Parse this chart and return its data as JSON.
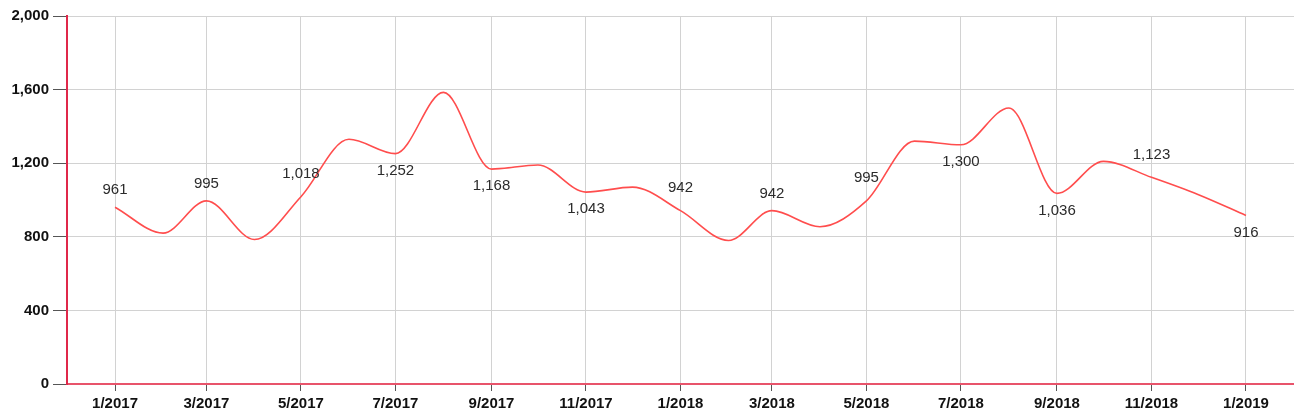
{
  "chart_data": {
    "type": "line",
    "x": [
      "2017-01",
      "2017-02",
      "2017-03",
      "2017-04",
      "2017-05",
      "2017-06",
      "2017-07",
      "2017-08",
      "2017-09",
      "2017-10",
      "2017-11",
      "2017-12",
      "2018-01",
      "2018-02",
      "2018-03",
      "2018-04",
      "2018-05",
      "2018-06",
      "2018-07",
      "2018-08",
      "2018-09",
      "2018-10",
      "2018-11",
      "2018-12",
      "2019-01"
    ],
    "series": [
      {
        "color": "#ff4d4d",
        "values": [
          961,
          820,
          995,
          785,
          1018,
          1330,
          1252,
          1585,
          1168,
          1190,
          1043,
          1070,
          942,
          780,
          942,
          855,
          995,
          1320,
          1300,
          1500,
          1036,
          1210,
          1123,
          1030,
          916
        ],
        "value_labels": [
          "961",
          null,
          "995",
          null,
          "1,018",
          null,
          "1,252",
          null,
          "1,168",
          null,
          "1,043",
          null,
          "942",
          null,
          "942",
          null,
          "995",
          null,
          "1,300",
          null,
          "1,036",
          null,
          "1,123",
          null,
          "916"
        ]
      }
    ],
    "xlim": [
      "2016-12",
      "2019-02"
    ],
    "xticks": [
      {
        "value": "2017-01",
        "label": "1/2017"
      },
      {
        "value": "2017-03",
        "label": "3/2017"
      },
      {
        "value": "2017-05",
        "label": "5/2017"
      },
      {
        "value": "2017-07",
        "label": "7/2017"
      },
      {
        "value": "2017-09",
        "label": "9/2017"
      },
      {
        "value": "2017-11",
        "label": "11/2017"
      },
      {
        "value": "2018-01",
        "label": "1/2018"
      },
      {
        "value": "2018-03",
        "label": "3/2018"
      },
      {
        "value": "2018-05",
        "label": "5/2018"
      },
      {
        "value": "2018-07",
        "label": "7/2018"
      },
      {
        "value": "2018-09",
        "label": "9/2018"
      },
      {
        "value": "2018-11",
        "label": "11/2018"
      },
      {
        "value": "2019-01",
        "label": "1/2019"
      }
    ],
    "ylim": [
      0,
      2000
    ],
    "yticks": [
      0,
      400,
      800,
      {
        "value": 1200,
        "label": "1,200"
      },
      {
        "value": 1600,
        "label": "1,600"
      },
      {
        "value": 2000,
        "label": "2,000"
      }
    ],
    "grid": true
  }
}
